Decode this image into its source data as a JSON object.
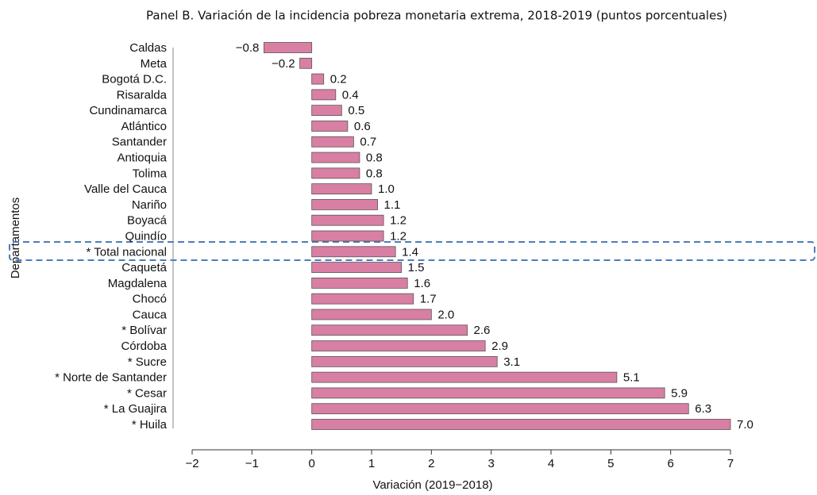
{
  "chart_data": {
    "type": "barh",
    "title": "Panel B. Variación de la incidencia pobreza monetaria extrema, 2018-2019 (puntos porcentuales)",
    "xlabel": "Variación (2019−2018)",
    "ylabel": "Departamentos",
    "categories": [
      "Caldas",
      "Meta",
      "Bogotá D.C.",
      "Risaralda",
      "Cundinamarca",
      "Atlántico",
      "Santander",
      "Antioquia",
      "Tolima",
      "Valle del Cauca",
      "Nariño",
      "Boyacá",
      "Quindío",
      "* Total nacional",
      "Caquetá",
      "Magdalena",
      "Chocó",
      "Cauca",
      "* Bolívar",
      "Córdoba",
      "* Sucre",
      "* Norte de Santander",
      "* Cesar",
      "* La Guajira",
      "* Huila"
    ],
    "values": [
      -0.8,
      -0.2,
      0.2,
      0.4,
      0.5,
      0.6,
      0.7,
      0.8,
      0.8,
      1.0,
      1.1,
      1.2,
      1.2,
      1.4,
      1.5,
      1.6,
      1.7,
      2.0,
      2.6,
      2.9,
      3.1,
      5.1,
      5.9,
      6.3,
      7.0
    ],
    "value_labels": [
      "−0.8",
      "−0.2",
      "0.2",
      "0.4",
      "0.5",
      "0.6",
      "0.7",
      "0.8",
      "0.8",
      "1.0",
      "1.1",
      "1.2",
      "1.2",
      "1.4",
      "1.5",
      "1.6",
      "1.7",
      "2.0",
      "2.6",
      "2.9",
      "3.1",
      "5.1",
      "5.9",
      "6.3",
      "7.0"
    ],
    "color": "#d97fa3",
    "xlim": [
      -2,
      7
    ],
    "xticks": [
      {
        "value": -2,
        "label": "−2"
      },
      {
        "value": -1,
        "label": "−1"
      },
      0,
      1,
      2,
      3,
      4,
      5,
      6,
      7
    ]
  }
}
